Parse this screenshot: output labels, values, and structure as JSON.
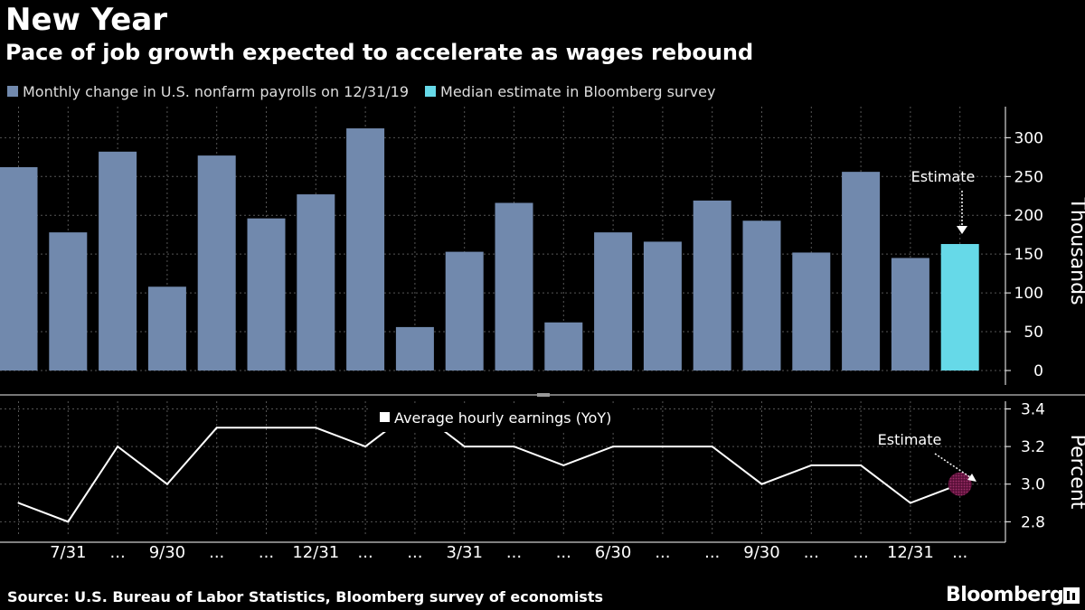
{
  "header": {
    "title": "New Year",
    "subtitle": "Pace of job growth expected to accelerate as wages rebound"
  },
  "legend": {
    "payrolls": "Monthly change in U.S. nonfarm payrolls on 12/31/19",
    "estimate": "Median estimate in Bloomberg survey",
    "earnings": "Average hourly earnings (YoY)"
  },
  "colors": {
    "bar": "#7189ad",
    "estimate_bar": "#66d9e8",
    "line": "#ffffff",
    "estimate_dot": "#7a1a4f",
    "grid": "#555555"
  },
  "chart_data": [
    {
      "type": "bar",
      "categories": [
        "",
        "7/31",
        "...",
        "9/30",
        "...",
        "...",
        "12/31",
        "...",
        "...",
        "3/31",
        "...",
        "...",
        "6/30",
        "...",
        "...",
        "9/30",
        "...",
        "...",
        "12/31",
        "..."
      ],
      "series": [
        {
          "name": "Monthly change in U.S. nonfarm payrolls on 12/31/19",
          "values": [
            262,
            178,
            282,
            108,
            277,
            196,
            227,
            312,
            56,
            153,
            216,
            62,
            178,
            166,
            219,
            193,
            152,
            256,
            145,
            null
          ]
        },
        {
          "name": "Median estimate in Bloomberg survey",
          "values": [
            null,
            null,
            null,
            null,
            null,
            null,
            null,
            null,
            null,
            null,
            null,
            null,
            null,
            null,
            null,
            null,
            null,
            null,
            null,
            163
          ]
        }
      ],
      "ylabel": "Thousands",
      "ylim": [
        0,
        340
      ],
      "yticks": [
        "0",
        "50",
        "100",
        "150",
        "200",
        "250",
        "300"
      ],
      "annotation": "Estimate",
      "grid": true
    },
    {
      "type": "line",
      "categories": [
        "",
        "7/31",
        "...",
        "9/30",
        "...",
        "...",
        "12/31",
        "...",
        "...",
        "3/31",
        "...",
        "...",
        "6/30",
        "...",
        "...",
        "9/30",
        "...",
        "...",
        "12/31",
        "..."
      ],
      "series": [
        {
          "name": "Average hourly earnings (YoY)",
          "values": [
            2.9,
            2.8,
            3.2,
            3.0,
            3.3,
            3.3,
            3.3,
            3.2,
            3.4,
            3.2,
            3.2,
            3.1,
            3.2,
            3.2,
            3.2,
            3.0,
            3.1,
            3.1,
            2.9,
            3.0
          ]
        }
      ],
      "ylabel": "Percent",
      "ylim": [
        2.72,
        3.46
      ],
      "yticks": [
        "2.8",
        "3.0",
        "3.2",
        "3.4"
      ],
      "annotation": "Estimate",
      "grid": true
    }
  ],
  "footer": {
    "source": "Source: U.S. Bureau of Labor Statistics, Bloomberg survey of economists",
    "brand": "Bloomberg"
  }
}
